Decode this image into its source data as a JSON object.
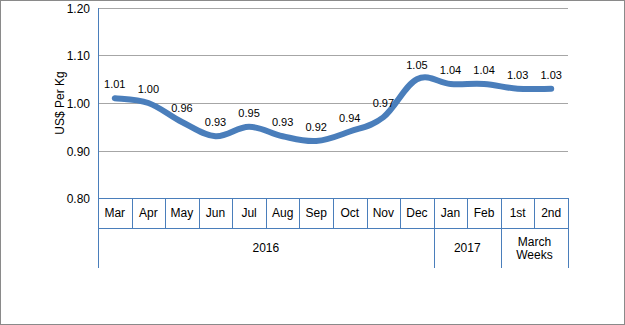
{
  "chart_data": {
    "type": "line",
    "y_label": "US$ Per Kg",
    "categories": [
      "Mar",
      "Apr",
      "May",
      "Jun",
      "Jul",
      "Aug",
      "Sep",
      "Oct",
      "Nov",
      "Dec",
      "Jan",
      "Feb",
      "1st",
      "2nd"
    ],
    "category_groups": [
      "2016",
      "2016",
      "2016",
      "2016",
      "2016",
      "2016",
      "2016",
      "2016",
      "2016",
      "2016",
      "2017",
      "2017",
      "March Weeks",
      "March Weeks"
    ],
    "values": [
      1.01,
      1.0,
      0.96,
      0.93,
      0.95,
      0.93,
      0.92,
      0.94,
      0.97,
      1.05,
      1.04,
      1.04,
      1.03,
      1.03
    ],
    "value_labels": [
      "1.01",
      "1.00",
      "0.96",
      "0.93",
      "0.95",
      "0.93",
      "0.92",
      "0.94",
      "0.97",
      "1.05",
      "1.04",
      "1.04",
      "1.03",
      "1.03"
    ],
    "color": "#4a7ebb",
    "ylim": [
      0.8,
      1.2
    ],
    "yticks": [
      {
        "value": 0.8,
        "label": "0.80"
      },
      {
        "value": 0.9,
        "label": "0.90"
      },
      {
        "value": 1.0,
        "label": "1.00"
      },
      {
        "value": 1.1,
        "label": "1.10"
      },
      {
        "value": 1.2,
        "label": "1.20"
      }
    ],
    "grid": true,
    "data_labels": true
  }
}
